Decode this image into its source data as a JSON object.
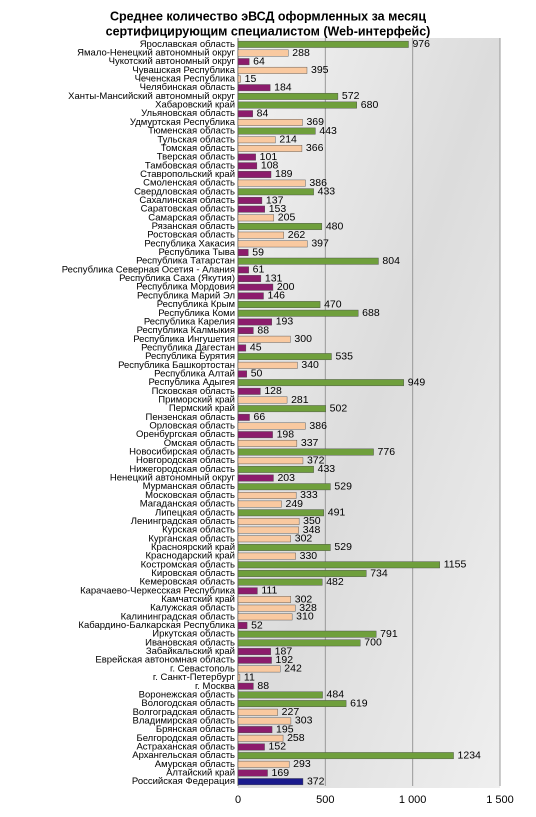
{
  "chart_data": {
    "type": "barh",
    "title": [
      "Среднее количество эВСД оформленных за месяц",
      "сертифицирующим  специалистом (Web-интерфейс)"
    ],
    "categories": [
      "Ярославская область",
      "Ямало-Ненецкий автономный округ",
      "Чукотский автономный округ",
      "Чувашская Республика",
      "Чеченская Республика",
      "Челябинская область",
      "Ханты-Мансийский автономный округ",
      "Хабаровский край",
      "Ульяновская область",
      "Удмуртская Республика",
      "Тюменская область",
      "Тульская область",
      "Томская область",
      "Тверская область",
      "Тамбовская область",
      "Ставропольский край",
      "Смоленская область",
      "Свердловская область",
      "Сахалинская область",
      "Саратовская область",
      "Самарская область",
      "Рязанская область",
      "Ростовская область",
      "Республика Хакасия",
      "Республика Тыва",
      "Республика Татарстан",
      "Республика Северная Осетия - Алания",
      "Республика Саха (Якутия)",
      "Республика Мордовия",
      "Республика Марий Эл",
      "Республика Крым",
      "Республика Коми",
      "Республика Карелия",
      "Республика Калмыкия",
      "Республика Ингушетия",
      "Республика Дагестан",
      "Республика Бурятия",
      "Республика Башкортостан",
      "Республика Алтай",
      "Республика Адыгея",
      "Псковская область",
      "Приморский край",
      "Пермский край",
      "Пензенская область",
      "Орловская область",
      "Оренбургская область",
      "Омская область",
      "Новосибирская область",
      "Новгородская область",
      "Нижегородская область",
      "Ненецкий автономный округ",
      "Мурманская область",
      "Московская область",
      "Магаданская область",
      "Липецкая область",
      "Ленинградская область",
      "Курская область",
      "Курганская область",
      "Красноярский край",
      "Краснодарский край",
      "Костромская область",
      "Кировская область",
      "Кемеровская область",
      "Карачаево-Черкесская Республика",
      "Камчатский край",
      "Калужская область",
      "Калининградская область",
      "Кабардино-Балкарская Республика",
      "Иркутская область",
      "Ивановская область",
      "Забайкальский край",
      "Еврейская автономная область",
      "г. Севастополь",
      "г. Санкт-Петербург",
      "г. Москва",
      "Воронежская область",
      "Вологодская область",
      "Волгоградская область",
      "Владимирская область",
      "Брянская область",
      "Белгородская область",
      "Астраханская область",
      "Архангельская область",
      "Амурская область",
      "Алтайский край",
      "Российская Федерация"
    ],
    "values": [
      976,
      288,
      64,
      395,
      15,
      184,
      572,
      680,
      84,
      369,
      443,
      214,
      366,
      101,
      108,
      189,
      386,
      433,
      137,
      153,
      205,
      480,
      262,
      397,
      59,
      804,
      61,
      131,
      200,
      146,
      470,
      688,
      193,
      88,
      300,
      45,
      535,
      340,
      50,
      949,
      128,
      281,
      502,
      66,
      386,
      198,
      337,
      776,
      372,
      433,
      203,
      529,
      333,
      249,
      491,
      350,
      348,
      302,
      529,
      330,
      1155,
      734,
      482,
      111,
      302,
      328,
      310,
      52,
      791,
      700,
      187,
      192,
      242,
      11,
      88,
      484,
      619,
      227,
      303,
      195,
      258,
      152,
      1234,
      293,
      169,
      372
    ],
    "colors": [
      "#6f9f3c",
      "#f9c9a0",
      "#8c1c6c",
      "#f9c9a0",
      "#f9c9a0",
      "#8c1c6c",
      "#6f9f3c",
      "#6f9f3c",
      "#8c1c6c",
      "#f9c9a0",
      "#6f9f3c",
      "#f9c9a0",
      "#f9c9a0",
      "#8c1c6c",
      "#8c1c6c",
      "#8c1c6c",
      "#f9c9a0",
      "#6f9f3c",
      "#8c1c6c",
      "#8c1c6c",
      "#f9c9a0",
      "#6f9f3c",
      "#f9c9a0",
      "#f9c9a0",
      "#8c1c6c",
      "#6f9f3c",
      "#8c1c6c",
      "#8c1c6c",
      "#8c1c6c",
      "#8c1c6c",
      "#6f9f3c",
      "#6f9f3c",
      "#8c1c6c",
      "#8c1c6c",
      "#f9c9a0",
      "#8c1c6c",
      "#6f9f3c",
      "#f9c9a0",
      "#8c1c6c",
      "#6f9f3c",
      "#8c1c6c",
      "#f9c9a0",
      "#6f9f3c",
      "#8c1c6c",
      "#f9c9a0",
      "#8c1c6c",
      "#f9c9a0",
      "#6f9f3c",
      "#f9c9a0",
      "#6f9f3c",
      "#8c1c6c",
      "#6f9f3c",
      "#f9c9a0",
      "#f9c9a0",
      "#6f9f3c",
      "#f9c9a0",
      "#f9c9a0",
      "#f9c9a0",
      "#6f9f3c",
      "#f9c9a0",
      "#6f9f3c",
      "#6f9f3c",
      "#6f9f3c",
      "#8c1c6c",
      "#f9c9a0",
      "#f9c9a0",
      "#f9c9a0",
      "#8c1c6c",
      "#6f9f3c",
      "#6f9f3c",
      "#8c1c6c",
      "#8c1c6c",
      "#f9c9a0",
      "#f9c9a0",
      "#8c1c6c",
      "#6f9f3c",
      "#6f9f3c",
      "#f9c9a0",
      "#f9c9a0",
      "#8c1c6c",
      "#f9c9a0",
      "#8c1c6c",
      "#6f9f3c",
      "#f9c9a0",
      "#8c1c6c",
      "#1a1a8c"
    ],
    "xlim": [
      0,
      1500
    ],
    "xticks": [
      0,
      500,
      {
        "value": 1000,
        "label": "1 000"
      },
      {
        "value": 1500,
        "label": "1 500"
      }
    ],
    "grid": true
  }
}
